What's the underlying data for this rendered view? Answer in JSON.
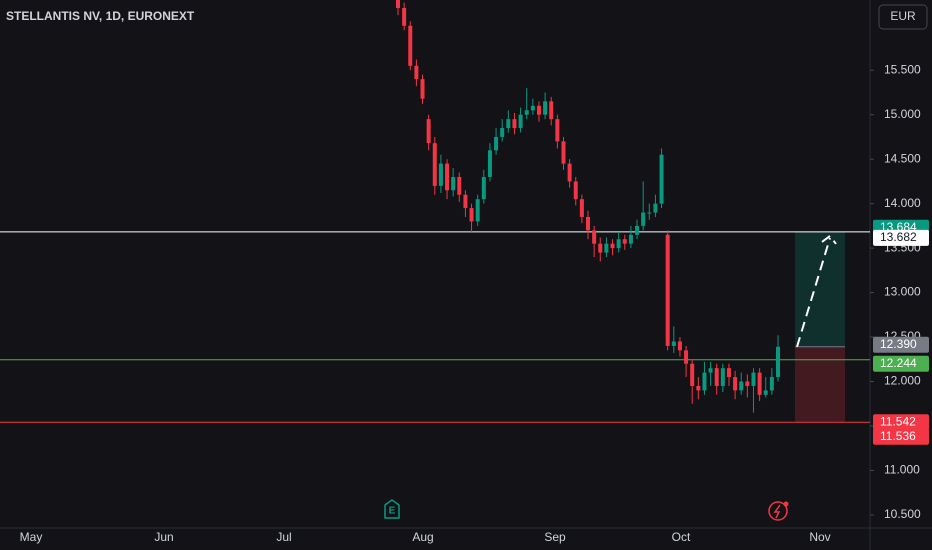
{
  "chart_data": {
    "type": "candlestick",
    "title": "STELLANTIS NV, 1D, EURONEXT",
    "currency": "EUR",
    "x_labels": [
      "May",
      "Jun",
      "Jul",
      "Aug",
      "Sep",
      "Oct",
      "Nov"
    ],
    "ylim": [
      10.33,
      16.29
    ],
    "yticks": [
      {
        "value": 10.5,
        "label": "10.500"
      },
      {
        "value": 11,
        "label": "11.000"
      },
      {
        "value": 11.5,
        "label": "11.500"
      },
      {
        "value": 12,
        "label": "12.000"
      },
      {
        "value": 12.5,
        "label": "12.500"
      },
      {
        "value": 13,
        "label": "13.000"
      },
      {
        "value": 13.5,
        "label": "13.500"
      },
      {
        "value": 14,
        "label": "14.000"
      },
      {
        "value": 14.5,
        "label": "14.500"
      },
      {
        "value": 15,
        "label": "15.000"
      },
      {
        "value": 15.5,
        "label": "15.500"
      }
    ],
    "up_color": "#089981",
    "down_color": "#f23645",
    "open": [
      16.3,
      16.2,
      16.0,
      15.55,
      15.4,
      14.95,
      14.68,
      14.2,
      14.45,
      14.15,
      14.3,
      14.1,
      13.95,
      13.8,
      14.05,
      14.3,
      14.6,
      14.75,
      14.85,
      14.95,
      14.85,
      15.0,
      15.05,
      15.1,
      15.0,
      15.15,
      14.95,
      14.7,
      14.45,
      14.25,
      14.05,
      13.85,
      13.7,
      13.55,
      13.45,
      13.55,
      13.5,
      13.6,
      13.55,
      13.65,
      13.75,
      13.9,
      13.9,
      14.0,
      13.65,
      12.4,
      12.45,
      12.35,
      12.2,
      11.95,
      11.9,
      12.1,
      12.15,
      11.95,
      12.15,
      12.05,
      11.9,
      12.0,
      11.95,
      12.1,
      11.85,
      11.9,
      12.05
    ],
    "high": [
      16.35,
      16.26,
      16.05,
      15.62,
      15.45,
      15.0,
      14.75,
      14.55,
      14.5,
      14.4,
      14.35,
      14.15,
      14.0,
      14.1,
      14.38,
      14.68,
      14.85,
      14.95,
      15.05,
      15.02,
      15.08,
      15.3,
      15.18,
      15.15,
      15.25,
      15.2,
      15.0,
      14.75,
      14.5,
      14.3,
      14.1,
      13.92,
      13.75,
      13.62,
      13.62,
      13.6,
      13.68,
      13.65,
      13.75,
      13.82,
      14.25,
      14.0,
      14.1,
      14.62,
      13.7,
      12.62,
      12.5,
      12.4,
      12.25,
      12.05,
      12.22,
      12.22,
      12.2,
      12.2,
      12.2,
      12.12,
      12.1,
      12.08,
      12.15,
      12.15,
      12.05,
      12.15,
      12.52
    ],
    "low": [
      16.12,
      15.95,
      15.5,
      15.32,
      15.12,
      14.6,
      14.1,
      14.12,
      14.05,
      14.08,
      14.02,
      13.85,
      13.68,
      13.75,
      14.0,
      14.25,
      14.55,
      14.7,
      14.8,
      14.78,
      14.8,
      14.95,
      15.0,
      14.92,
      14.95,
      14.88,
      14.62,
      14.38,
      14.18,
      13.98,
      13.78,
      13.6,
      13.4,
      13.35,
      13.4,
      13.42,
      13.45,
      13.48,
      13.5,
      13.6,
      13.7,
      13.82,
      13.85,
      13.95,
      12.35,
      12.32,
      12.28,
      12.05,
      11.75,
      11.8,
      11.85,
      11.95,
      11.85,
      11.88,
      11.95,
      11.8,
      11.85,
      11.82,
      11.65,
      11.78,
      11.82,
      11.85,
      12.0
    ],
    "close": [
      16.2,
      16.0,
      15.55,
      15.4,
      15.18,
      14.68,
      14.2,
      14.45,
      14.15,
      14.3,
      14.1,
      13.95,
      13.8,
      14.05,
      14.3,
      14.6,
      14.75,
      14.85,
      14.95,
      14.85,
      15.0,
      15.05,
      15.1,
      15.0,
      15.15,
      14.95,
      14.7,
      14.45,
      14.25,
      14.05,
      13.85,
      13.7,
      13.55,
      13.45,
      13.55,
      13.5,
      13.6,
      13.55,
      13.65,
      13.75,
      13.9,
      13.9,
      14.0,
      14.55,
      12.4,
      12.45,
      12.35,
      12.2,
      11.95,
      11.9,
      12.1,
      12.15,
      11.95,
      12.15,
      12.05,
      11.9,
      12.0,
      11.95,
      12.1,
      11.85,
      11.9,
      12.05,
      12.39
    ],
    "lines": [
      {
        "value": 13.682,
        "color": "#ffffff"
      },
      {
        "value": 12.244,
        "color": "#4caf50"
      },
      {
        "value": 11.542,
        "color": "#f23645"
      }
    ],
    "position": {
      "target": 13.682,
      "entry": 12.39,
      "stop": 11.542
    },
    "price_labels": [
      {
        "value": 13.684,
        "color": "#089981"
      },
      {
        "value": 13.682,
        "color": "#ffffff"
      },
      {
        "value": 12.39,
        "label": "12.390",
        "color": "#787b86"
      },
      {
        "value": 12.244,
        "color": "#4caf50"
      },
      {
        "value": 11.542,
        "color": "#f23645"
      },
      {
        "value": 11.536,
        "color": "#f23645"
      }
    ]
  }
}
